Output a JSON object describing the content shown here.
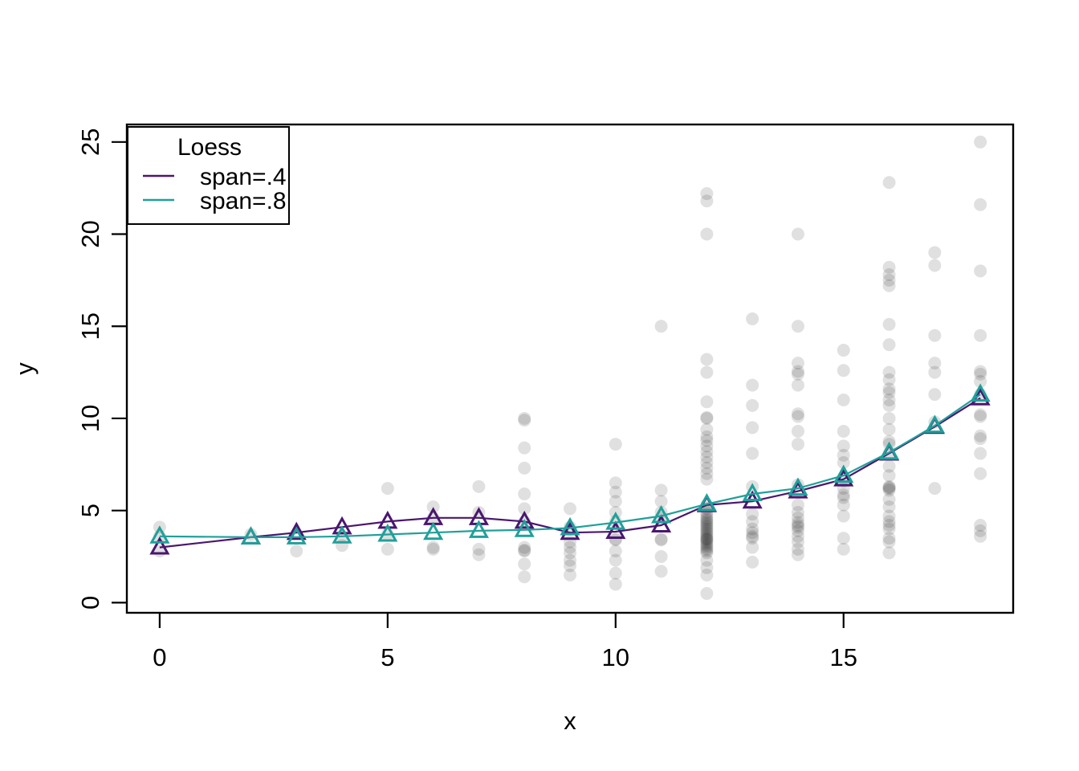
{
  "chart_data": {
    "type": "scatter",
    "title": "",
    "xlabel": "x",
    "ylabel": "y",
    "xlim": [
      0,
      18
    ],
    "ylim": [
      0,
      25
    ],
    "x_ticks": [
      0,
      5,
      10,
      15
    ],
    "y_ticks": [
      0,
      5,
      10,
      15,
      20,
      25
    ],
    "grid": false,
    "point_style": {
      "shape": "filled-circle",
      "color": "#000000",
      "alpha": 0.12,
      "radius_px": 8
    },
    "legend": {
      "title": "Loess",
      "position": "top-left"
    },
    "series": [
      {
        "label": "span=.4",
        "color": "#4a176f",
        "marker": "open-triangle",
        "x": [
          0,
          2,
          3,
          4,
          5,
          6,
          7,
          8,
          9,
          10,
          11,
          12,
          13,
          14,
          15,
          16,
          17,
          18
        ],
        "y": [
          3.0,
          3.55,
          3.8,
          4.1,
          4.4,
          4.6,
          4.6,
          4.4,
          3.8,
          3.85,
          4.2,
          5.3,
          5.5,
          6.05,
          6.7,
          8.1,
          9.55,
          11.1
        ]
      },
      {
        "label": "span=.8",
        "color": "#20a09a",
        "marker": "open-triangle",
        "x": [
          0,
          2,
          3,
          4,
          5,
          6,
          7,
          8,
          9,
          10,
          11,
          12,
          13,
          14,
          15,
          16,
          17,
          18
        ],
        "y": [
          3.6,
          3.55,
          3.55,
          3.6,
          3.7,
          3.8,
          3.9,
          3.95,
          4.05,
          4.35,
          4.7,
          5.35,
          5.9,
          6.2,
          6.9,
          8.15,
          9.6,
          11.3
        ]
      }
    ],
    "points": [
      {
        "x": 0,
        "y": [
          4.1,
          3.6,
          2.8
        ]
      },
      {
        "x": 2,
        "y": [
          3.7
        ]
      },
      {
        "x": 3,
        "y": [
          2.8
        ]
      },
      {
        "x": 4,
        "y": [
          3.6,
          3.1
        ]
      },
      {
        "x": 5,
        "y": [
          6.2,
          3.7,
          2.9
        ]
      },
      {
        "x": 6,
        "y": [
          5.2,
          4.6,
          3.0,
          2.9
        ]
      },
      {
        "x": 7,
        "y": [
          6.3,
          4.9,
          2.9,
          2.6
        ]
      },
      {
        "x": 8,
        "y": [
          10.0,
          9.9,
          8.4,
          7.3,
          5.9,
          5.1,
          4.4,
          3.0,
          2.85,
          2.8,
          2.1,
          1.4
        ]
      },
      {
        "x": 9,
        "y": [
          5.1,
          4.1,
          3.3,
          3.0,
          2.7,
          2.3,
          2.0,
          1.5
        ]
      },
      {
        "x": 10,
        "y": [
          8.6,
          6.5,
          6.0,
          5.5,
          4.9,
          4.4,
          3.45,
          3.4,
          2.8,
          2.3,
          1.6,
          1.0
        ]
      },
      {
        "x": 11,
        "y": [
          15.0,
          6.1,
          5.5,
          4.9,
          4.6,
          3.45,
          3.4,
          2.5,
          1.7
        ]
      },
      {
        "x": 12,
        "y": [
          22.2,
          21.8,
          20.0,
          13.2,
          12.5,
          10.9,
          10.05,
          10.0,
          9.4,
          9.0,
          8.8,
          8.5,
          8.2,
          7.9,
          7.6,
          7.3,
          7.0,
          6.7,
          5.3,
          5.1,
          4.9,
          4.75,
          4.6,
          4.5,
          4.4,
          4.3,
          4.2,
          4.1,
          4.0,
          3.9,
          3.8,
          3.7,
          3.6,
          3.5,
          3.45,
          3.4,
          3.3,
          3.2,
          3.1,
          3.0,
          2.9,
          2.8,
          2.7,
          2.3,
          1.9,
          1.5,
          0.5
        ]
      },
      {
        "x": 13,
        "y": [
          15.4,
          11.8,
          10.7,
          9.5,
          8.1,
          6.3,
          4.8,
          4.4,
          4.0,
          3.8,
          3.6,
          3.5,
          3.0,
          2.2
        ]
      },
      {
        "x": 14,
        "y": [
          20.0,
          15.0,
          13.0,
          12.55,
          12.4,
          11.8,
          10.25,
          10.1,
          9.3,
          8.6,
          6.4,
          5.3,
          4.9,
          4.6,
          4.35,
          4.2,
          4.1,
          3.9,
          3.6,
          3.3,
          2.9,
          2.6
        ]
      },
      {
        "x": 15,
        "y": [
          13.7,
          12.6,
          11.0,
          9.3,
          8.5,
          8.0,
          7.6,
          6.6,
          6.2,
          5.85,
          5.7,
          5.3,
          4.7,
          3.5,
          2.9
        ]
      },
      {
        "x": 16,
        "y": [
          22.8,
          18.2,
          17.8,
          17.5,
          17.2,
          15.1,
          14.0,
          12.5,
          12.1,
          11.6,
          11.4,
          11.0,
          10.7,
          10.0,
          9.4,
          8.75,
          8.6,
          8.1,
          7.4,
          6.9,
          6.3,
          6.25,
          6.2,
          6.1,
          5.6,
          5.2,
          4.7,
          4.4,
          4.2,
          4.0,
          3.5,
          3.3,
          2.7
        ]
      },
      {
        "x": 17,
        "y": [
          19.0,
          18.3,
          14.5,
          13.0,
          12.5,
          11.3,
          9.8,
          6.2
        ]
      },
      {
        "x": 18,
        "y": [
          25.0,
          21.6,
          18.0,
          14.5,
          12.55,
          12.4,
          12.0,
          11.3,
          10.2,
          10.1,
          9.05,
          8.9,
          8.1,
          7.0,
          4.2,
          3.9,
          3.6
        ]
      }
    ]
  }
}
